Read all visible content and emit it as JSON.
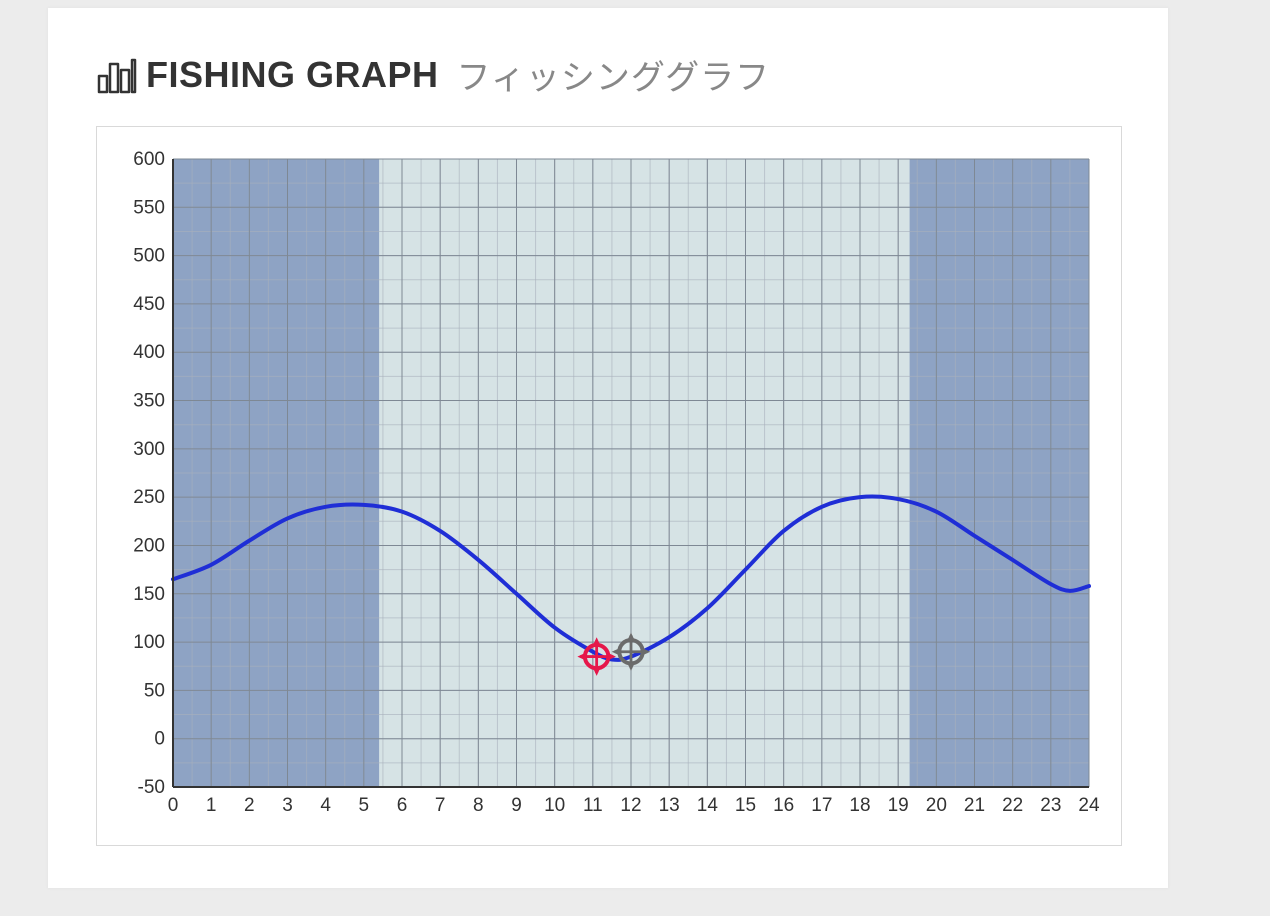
{
  "title": {
    "main": "FISHING GRAPH",
    "sub": "フィッシンググラフ",
    "main_color": "#333333",
    "sub_color": "#888888",
    "main_fontsize": 36,
    "sub_fontsize": 34,
    "icon_stroke": "#333333"
  },
  "chart": {
    "type": "line",
    "x_label_fontsize": 19,
    "y_label_fontsize": 19,
    "label_color": "#333333",
    "background_color": "#ffffff",
    "plot_bg_day": "#d6e3e5",
    "plot_bg_night": "#8ea3c4",
    "grid_major_color": "#7e8894",
    "grid_minor_color": "#a9b1bc",
    "axis_color": "#333333",
    "axis_width": 2,
    "grid_width": 1,
    "x": {
      "min": 0,
      "max": 24,
      "major_step": 1,
      "minor_step": 0.5,
      "ticks": [
        0,
        1,
        2,
        3,
        4,
        5,
        6,
        7,
        8,
        9,
        10,
        11,
        12,
        13,
        14,
        15,
        16,
        17,
        18,
        19,
        20,
        21,
        22,
        23,
        24
      ]
    },
    "y": {
      "min": -50,
      "max": 600,
      "major_step": 50,
      "minor_step": 25,
      "ticks": [
        -50,
        0,
        50,
        100,
        150,
        200,
        250,
        300,
        350,
        400,
        450,
        500,
        550,
        600
      ]
    },
    "night_bands": [
      {
        "start": 0,
        "end": 5.4
      },
      {
        "start": 19.3,
        "end": 24
      }
    ],
    "line": {
      "color": "#1f2ed6",
      "width": 4,
      "points": [
        [
          0,
          165
        ],
        [
          1,
          180
        ],
        [
          2,
          205
        ],
        [
          3,
          228
        ],
        [
          4,
          240
        ],
        [
          5,
          242
        ],
        [
          6,
          235
        ],
        [
          7,
          215
        ],
        [
          8,
          185
        ],
        [
          9,
          150
        ],
        [
          10,
          115
        ],
        [
          11,
          90
        ],
        [
          11.5,
          82
        ],
        [
          12,
          85
        ],
        [
          13,
          105
        ],
        [
          14,
          135
        ],
        [
          15,
          175
        ],
        [
          16,
          215
        ],
        [
          17,
          240
        ],
        [
          18,
          250
        ],
        [
          19,
          248
        ],
        [
          20,
          235
        ],
        [
          21,
          210
        ],
        [
          22,
          185
        ],
        [
          23,
          160
        ],
        [
          23.5,
          153
        ],
        [
          24,
          158
        ]
      ]
    },
    "markers": [
      {
        "x": 11.1,
        "y": 85,
        "color": "#e6174a",
        "stroke_width": 4,
        "radius": 15
      },
      {
        "x": 12.0,
        "y": 90,
        "color": "#6b6b6b",
        "stroke_width": 4,
        "radius": 15
      }
    ]
  }
}
